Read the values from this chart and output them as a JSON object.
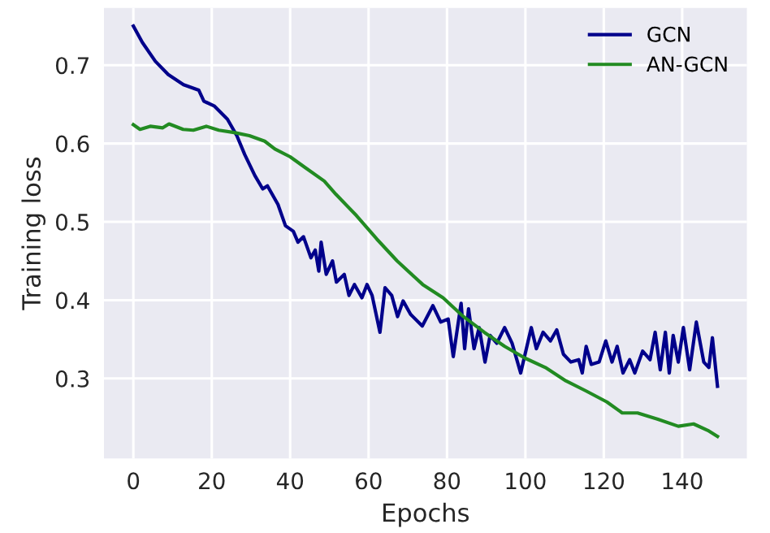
{
  "chart_data": {
    "type": "line",
    "xlabel": "Epochs",
    "ylabel": "Training loss",
    "legend": "top right",
    "grid": true,
    "marker": "none",
    "line_style": "solid",
    "xlim": [
      -7.5,
      156.5
    ],
    "ylim": [
      0.198,
      0.773
    ],
    "xticks": [
      0,
      20,
      40,
      60,
      80,
      100,
      120,
      140
    ],
    "yticks": [
      0.3,
      0.4,
      0.5,
      0.6,
      0.7
    ],
    "series": [
      {
        "name": "GCN",
        "color": "#00008b",
        "x": [
          0,
          2.3,
          5.6,
          8.9,
          12.8,
          16.7,
          18,
          20.6,
          24,
          26.4,
          28.4,
          31,
          33,
          34.2,
          36.9,
          38.8,
          40.8,
          42,
          43.4,
          45.3,
          46.4,
          47.3,
          47.9,
          49.2,
          50.8,
          51.8,
          53.8,
          55,
          56.4,
          58.3,
          59.6,
          60.9,
          62.9,
          64.2,
          65.9,
          67.4,
          68.8,
          70.7,
          73.7,
          76.4,
          78.4,
          80.3,
          81.6,
          83.6,
          84.5,
          85.5,
          86.9,
          88.2,
          89.7,
          91,
          92.7,
          94.7,
          96.6,
          98.8,
          101.5,
          102.8,
          104.5,
          106.4,
          108,
          109.7,
          111.6,
          113.6,
          114.5,
          115.5,
          116.8,
          118.8,
          120.5,
          122.1,
          123.4,
          124.9,
          126.6,
          127.9,
          129.9,
          131.8,
          133.1,
          134.4,
          135.7,
          136.7,
          137.7,
          139,
          140.3,
          141.9,
          143.6,
          145.5,
          146.8,
          147.7,
          149
        ],
        "values": [
          0.75,
          0.729,
          0.705,
          0.688,
          0.675,
          0.668,
          0.654,
          0.648,
          0.631,
          0.61,
          0.586,
          0.559,
          0.542,
          0.546,
          0.522,
          0.495,
          0.488,
          0.474,
          0.481,
          0.454,
          0.464,
          0.437,
          0.474,
          0.433,
          0.45,
          0.423,
          0.433,
          0.406,
          0.42,
          0.403,
          0.42,
          0.406,
          0.359,
          0.416,
          0.406,
          0.379,
          0.399,
          0.382,
          0.367,
          0.393,
          0.372,
          0.376,
          0.328,
          0.396,
          0.338,
          0.389,
          0.338,
          0.365,
          0.321,
          0.355,
          0.345,
          0.365,
          0.345,
          0.307,
          0.365,
          0.338,
          0.359,
          0.348,
          0.362,
          0.331,
          0.321,
          0.324,
          0.307,
          0.341,
          0.318,
          0.321,
          0.348,
          0.321,
          0.341,
          0.307,
          0.324,
          0.307,
          0.335,
          0.324,
          0.359,
          0.311,
          0.359,
          0.307,
          0.355,
          0.321,
          0.365,
          0.311,
          0.372,
          0.321,
          0.314,
          0.352,
          0.29
        ]
      },
      {
        "name": "AN-GCN",
        "color": "#228b22",
        "x": [
          0,
          1.7,
          4.3,
          7.5,
          9.1,
          12.7,
          15.3,
          18.6,
          21.8,
          25.7,
          29.6,
          33.5,
          36.1,
          40,
          43.9,
          48.7,
          51.7,
          56.9,
          62.1,
          67.3,
          73.8,
          79,
          84.2,
          89.5,
          94.7,
          99.9,
          105.1,
          110.3,
          115.5,
          120.8,
          124.7,
          128.6,
          133.8,
          139,
          142.9,
          146.8,
          149
        ],
        "values": [
          0.624,
          0.618,
          0.622,
          0.62,
          0.625,
          0.618,
          0.617,
          0.622,
          0.617,
          0.614,
          0.61,
          0.603,
          0.593,
          0.583,
          0.569,
          0.552,
          0.535,
          0.508,
          0.478,
          0.45,
          0.42,
          0.403,
          0.379,
          0.359,
          0.341,
          0.326,
          0.314,
          0.297,
          0.284,
          0.27,
          0.256,
          0.256,
          0.248,
          0.239,
          0.242,
          0.233,
          0.226
        ]
      }
    ]
  }
}
